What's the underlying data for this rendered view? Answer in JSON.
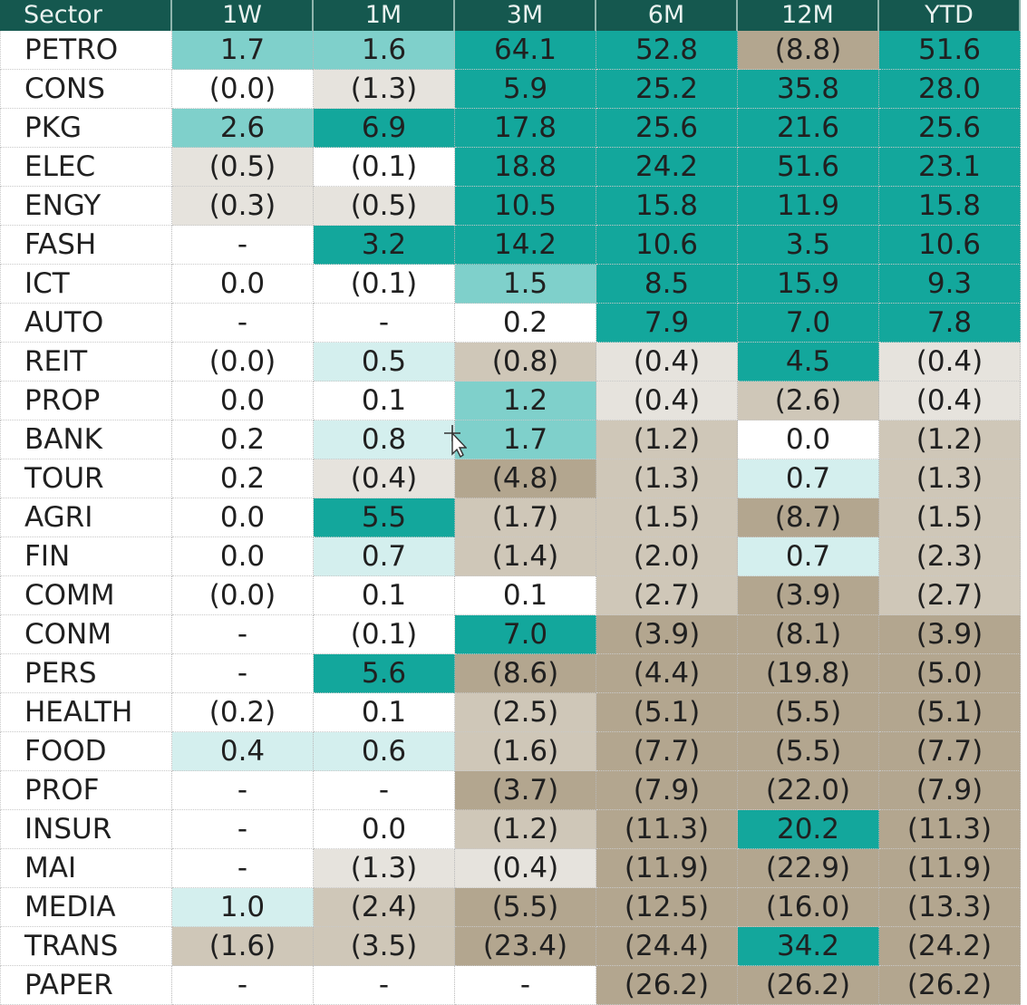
{
  "chart_data": {
    "type": "heatmap",
    "columns": [
      "Sector",
      "1W",
      "1M",
      "3M",
      "6M",
      "12M",
      "YTD"
    ],
    "rows": [
      {
        "sector": "PETRO",
        "values": [
          "1.7",
          "1.6",
          "64.1",
          "52.8",
          "(8.8)",
          "51.6"
        ]
      },
      {
        "sector": "CONS",
        "values": [
          "(0.0)",
          "(1.3)",
          "5.9",
          "25.2",
          "35.8",
          "28.0"
        ]
      },
      {
        "sector": "PKG",
        "values": [
          "2.6",
          "6.9",
          "17.8",
          "25.6",
          "21.6",
          "25.6"
        ]
      },
      {
        "sector": "ELEC",
        "values": [
          "(0.5)",
          "(0.1)",
          "18.8",
          "24.2",
          "51.6",
          "23.1"
        ]
      },
      {
        "sector": "ENGY",
        "values": [
          "(0.3)",
          "(0.5)",
          "10.5",
          "15.8",
          "11.9",
          "15.8"
        ]
      },
      {
        "sector": "FASH",
        "values": [
          "-",
          "3.2",
          "14.2",
          "10.6",
          "3.5",
          "10.6"
        ]
      },
      {
        "sector": "ICT",
        "values": [
          "0.0",
          "(0.1)",
          "1.5",
          "8.5",
          "15.9",
          "9.3"
        ]
      },
      {
        "sector": "AUTO",
        "values": [
          "-",
          "-",
          "0.2",
          "7.9",
          "7.0",
          "7.8"
        ]
      },
      {
        "sector": "REIT",
        "values": [
          "(0.0)",
          "0.5",
          "(0.8)",
          "(0.4)",
          "4.5",
          "(0.4)"
        ]
      },
      {
        "sector": "PROP",
        "values": [
          "0.0",
          "0.1",
          "1.2",
          "(0.4)",
          "(2.6)",
          "(0.4)"
        ]
      },
      {
        "sector": "BANK",
        "values": [
          "0.2",
          "0.8",
          "1.7",
          "(1.2)",
          "0.0",
          "(1.2)"
        ]
      },
      {
        "sector": "TOUR",
        "values": [
          "0.2",
          "(0.4)",
          "(4.8)",
          "(1.3)",
          "0.7",
          "(1.3)"
        ]
      },
      {
        "sector": "AGRI",
        "values": [
          "0.0",
          "5.5",
          "(1.7)",
          "(1.5)",
          "(8.7)",
          "(1.5)"
        ]
      },
      {
        "sector": "FIN",
        "values": [
          "0.0",
          "0.7",
          "(1.4)",
          "(2.0)",
          "0.7",
          "(2.3)"
        ]
      },
      {
        "sector": "COMM",
        "values": [
          "(0.0)",
          "0.1",
          "0.1",
          "(2.7)",
          "(3.9)",
          "(2.7)"
        ]
      },
      {
        "sector": "CONM",
        "values": [
          "-",
          "(0.1)",
          "7.0",
          "(3.9)",
          "(8.1)",
          "(3.9)"
        ]
      },
      {
        "sector": "PERS",
        "values": [
          "-",
          "5.6",
          "(8.6)",
          "(4.4)",
          "(19.8)",
          "(5.0)"
        ]
      },
      {
        "sector": "HEALTH",
        "values": [
          "(0.2)",
          "0.1",
          "(2.5)",
          "(5.1)",
          "(5.5)",
          "(5.1)"
        ]
      },
      {
        "sector": "FOOD",
        "values": [
          "0.4",
          "0.6",
          "(1.6)",
          "(7.7)",
          "(5.5)",
          "(7.7)"
        ]
      },
      {
        "sector": "PROF",
        "values": [
          "-",
          "-",
          "(3.7)",
          "(7.9)",
          "(22.0)",
          "(7.9)"
        ]
      },
      {
        "sector": "INSUR",
        "values": [
          "-",
          "0.0",
          "(1.2)",
          "(11.3)",
          "20.2",
          "(11.3)"
        ]
      },
      {
        "sector": "MAI",
        "values": [
          "-",
          "(1.3)",
          "(0.4)",
          "(11.9)",
          "(22.9)",
          "(11.9)"
        ]
      },
      {
        "sector": "MEDIA",
        "values": [
          "1.0",
          "(2.4)",
          "(5.5)",
          "(12.5)",
          "(16.0)",
          "(13.3)"
        ]
      },
      {
        "sector": "TRANS",
        "values": [
          "(1.6)",
          "(3.5)",
          "(23.4)",
          "(24.4)",
          "34.2",
          "(24.2)"
        ]
      },
      {
        "sector": "PAPER",
        "values": [
          "-",
          "-",
          "-",
          "(26.2)",
          "(26.2)",
          "(26.2)"
        ]
      }
    ],
    "colors": {
      "header_bg": "#15584f",
      "header_text": "#e9f2ef",
      "strong_positive": "#13a79c",
      "mid_positive": "#7fd0cb",
      "light_positive": "#d4efee",
      "neutral": "#ffffff",
      "light_negative": "#e6e3dd",
      "mid_negative": "#cfc7b8",
      "strong_negative": "#b3a68f"
    }
  }
}
